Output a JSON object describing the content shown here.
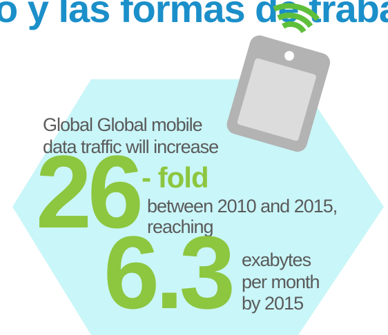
{
  "title": "o y las formas de trabaj",
  "intro": [
    "Global Global mobile",
    "data traffic will increase"
  ],
  "growth": {
    "number": "26",
    "unit": "- fold",
    "lines": [
      "between 2010 and 2015,",
      "reaching"
    ]
  },
  "volume": {
    "number": "6.3",
    "lines": [
      "exabytes",
      "per month",
      "by 2015"
    ]
  }
}
